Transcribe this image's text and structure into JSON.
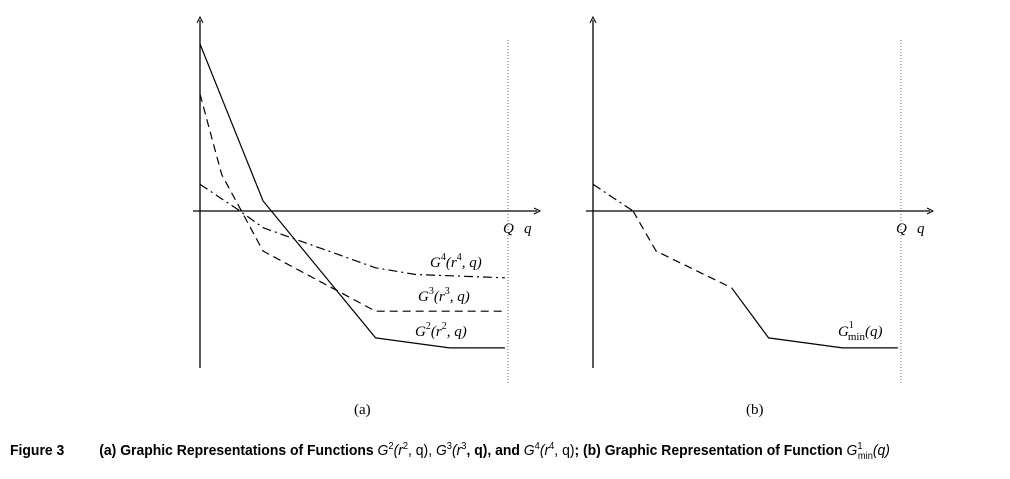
{
  "chart_data": [
    {
      "panel": "(a)",
      "type": "line",
      "xlabel": "q",
      "x_mark_label": "Q",
      "xlim": [
        0,
        10
      ],
      "ylim": [
        -5,
        5
      ],
      "series": [
        {
          "name": "G2(r2, q)",
          "style": "solid",
          "x": [
            0,
            2.05,
            5.7,
            8.1,
            9.9
          ],
          "y": [
            5.0,
            0.3,
            -3.8,
            -4.1,
            -4.1
          ]
        },
        {
          "name": "G3(r3, q)",
          "style": "dashed",
          "x": [
            0,
            0.7,
            2.05,
            5.7,
            9.9
          ],
          "y": [
            3.5,
            1.1,
            -1.2,
            -3.0,
            -3.0
          ]
        },
        {
          "name": "G4(r4, q)",
          "style": "dash-dot",
          "x": [
            0,
            1.3,
            2.05,
            5.7,
            7.0,
            9.9
          ],
          "y": [
            0.8,
            0.0,
            -0.5,
            -1.7,
            -1.9,
            -2.0
          ]
        }
      ],
      "labels": [
        {
          "base": "G",
          "sup": "4",
          "args": "(r",
          "arg_sup": "4",
          "rest": ", q)"
        },
        {
          "base": "G",
          "sup": "3",
          "args": "(r",
          "arg_sup": "3",
          "rest": ", q)"
        },
        {
          "base": "G",
          "sup": "2",
          "args": "(r",
          "arg_sup": "2",
          "rest": ", q)"
        }
      ]
    },
    {
      "panel": "(b)",
      "type": "line",
      "xlabel": "q",
      "x_mark_label": "Q",
      "xlim": [
        0,
        10
      ],
      "ylim": [
        -5,
        5
      ],
      "series": [
        {
          "style": "dash-dot",
          "x": [
            0,
            1.3
          ],
          "y": [
            0.8,
            0.0
          ]
        },
        {
          "style": "dashed",
          "x": [
            1.3,
            2.05,
            4.5
          ],
          "y": [
            0.0,
            -1.2,
            -2.3
          ]
        },
        {
          "style": "solid",
          "x": [
            4.5,
            5.7,
            8.1,
            9.9
          ],
          "y": [
            -2.3,
            -3.8,
            -4.1,
            -4.1
          ]
        }
      ],
      "label": {
        "base": "G",
        "sup": "1",
        "sub": "min",
        "rest": "(q)"
      }
    }
  ],
  "panel_labels": [
    "(a)",
    "(b)"
  ],
  "caption": {
    "number": "Figure 3",
    "part1": "(a) Graphic Representations of Functions ",
    "g2": "G",
    "g2_sup": "2",
    "g2_args": "(r",
    "g2_rsup": "2",
    "g2_rest": ", q), ",
    "g3": "G",
    "g3_sup": "3",
    "g3_args": "(r",
    "g3_rsup": "3",
    "g3_rest": ", q), and ",
    "g4": "G",
    "g4_sup": "4",
    "g4_args": "(r",
    "g4_rsup": "4",
    "g4_rest": ", q)",
    "part2": "; (b) Graphic Representation of Function ",
    "gmin": "G",
    "gmin_sup": "1",
    "gmin_sub": "min",
    "gmin_rest": "(q)"
  }
}
